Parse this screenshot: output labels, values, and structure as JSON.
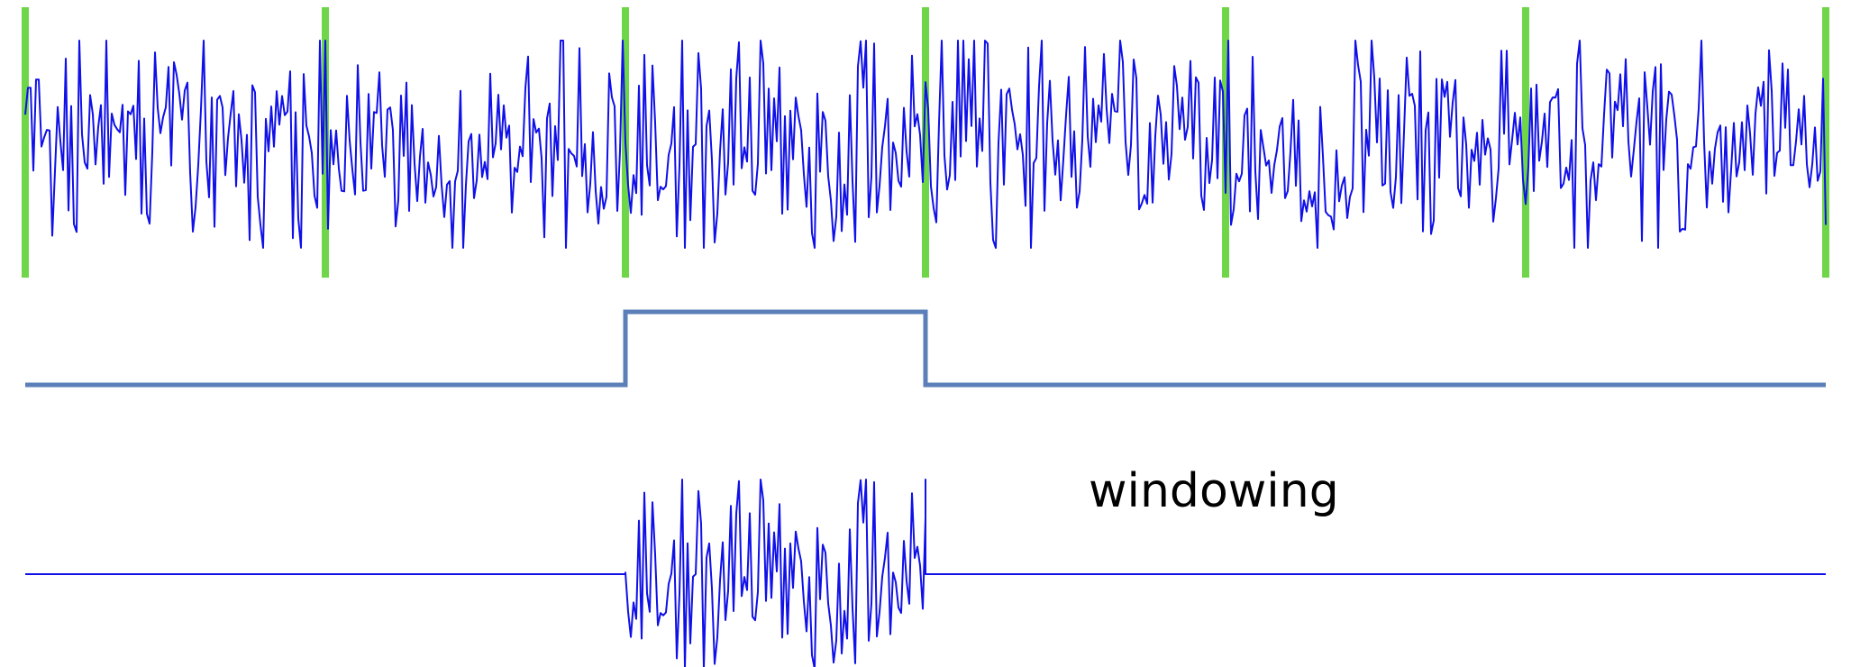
{
  "labels": {
    "windowing": "windowing"
  },
  "colors": {
    "signal": "#1010e8",
    "boundary": "#6fd64a",
    "window_function": "#5b7fb8",
    "text": "#000000",
    "background": "#ffffff"
  },
  "diagram": {
    "segment_count": 6,
    "selected_segment_index": 2,
    "window_function_shape": "rectangular",
    "window_levels": {
      "outside": 0,
      "inside": 1
    }
  }
}
